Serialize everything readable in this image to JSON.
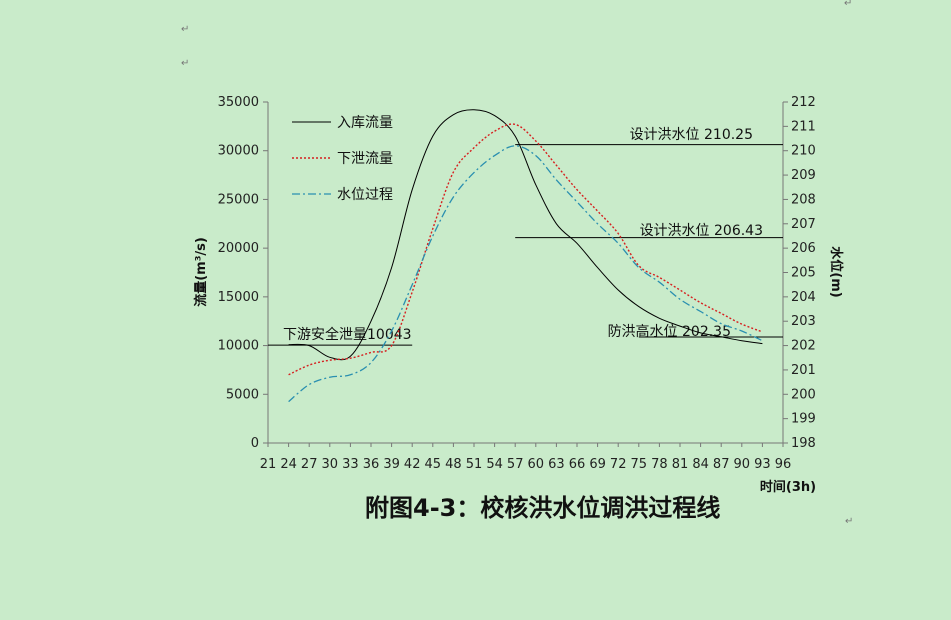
{
  "doc": {
    "para_mark": "↵",
    "caption": "附图4-3：校核洪水位调洪过程线"
  },
  "chart_data": {
    "type": "line",
    "x": [
      21,
      24,
      27,
      30,
      33,
      36,
      39,
      42,
      45,
      48,
      51,
      54,
      57,
      60,
      63,
      66,
      69,
      72,
      75,
      78,
      81,
      84,
      87,
      90,
      93,
      96
    ],
    "xlabel": "时间(3h)",
    "ylabel": "流量(m³/s)",
    "y2label": "水位(m)",
    "ylim": [
      0,
      35000
    ],
    "y2lim": [
      198,
      212
    ],
    "xlim": [
      21,
      96
    ],
    "yticks": [
      0,
      5000,
      10000,
      15000,
      20000,
      25000,
      30000,
      35000
    ],
    "y2ticks": [
      198,
      199,
      200,
      201,
      202,
      203,
      204,
      205,
      206,
      207,
      208,
      209,
      210,
      211,
      212
    ],
    "series": [
      {
        "name": "入库流量",
        "axis": "left",
        "color": "#000000",
        "dash": "solid",
        "x": [
          24,
          27,
          30,
          33,
          36,
          39,
          42,
          45,
          48,
          51,
          54,
          57,
          60,
          63,
          66,
          69,
          72,
          75,
          78,
          81,
          84,
          87,
          90,
          93
        ],
        "values": [
          10100,
          10000,
          8800,
          8900,
          12500,
          18000,
          26000,
          31500,
          33700,
          34200,
          33600,
          31500,
          26500,
          22500,
          20500,
          18000,
          15700,
          14000,
          12800,
          12000,
          11300,
          10900,
          10500,
          10200
        ]
      },
      {
        "name": "下泄流量",
        "axis": "left",
        "color": "#d62020",
        "dash": "dotted",
        "x": [
          24,
          27,
          30,
          33,
          36,
          39,
          42,
          45,
          48,
          51,
          54,
          57,
          60,
          63,
          66,
          69,
          72,
          75,
          78,
          81,
          84,
          87,
          90,
          93
        ],
        "values": [
          7000,
          8000,
          8500,
          8700,
          9300,
          10000,
          15500,
          22000,
          27800,
          30300,
          32000,
          32700,
          31000,
          28500,
          26000,
          23800,
          21500,
          18200,
          17000,
          15700,
          14400,
          13300,
          12200,
          11400
        ]
      },
      {
        "name": "水位过程",
        "axis": "right",
        "color": "#2a8fb0",
        "dash": "dashdot",
        "x": [
          24,
          27,
          30,
          33,
          36,
          39,
          42,
          45,
          48,
          51,
          54,
          57,
          60,
          63,
          66,
          69,
          72,
          75,
          78,
          81,
          84,
          87,
          90,
          93
        ],
        "values": [
          199.7,
          200.4,
          200.7,
          200.8,
          201.3,
          202.6,
          204.5,
          206.5,
          208.1,
          209.1,
          209.8,
          210.2,
          209.8,
          208.8,
          207.9,
          207.0,
          206.2,
          205.2,
          204.6,
          203.9,
          203.4,
          202.9,
          202.6,
          202.2
        ]
      }
    ],
    "reference_lines": [
      {
        "label": "下游安全泄量10043",
        "axis": "left",
        "value": 10043,
        "x_from": 21,
        "x_to": 42
      },
      {
        "label": "设计洪水位 210.25",
        "axis": "right",
        "value": 210.25,
        "x_from": 57,
        "x_to": 96
      },
      {
        "label": "设计洪水位  206.43",
        "axis": "right",
        "value": 206.43,
        "x_from": 57,
        "x_to": 96
      },
      {
        "label": "防洪高水位  202.35",
        "axis": "right",
        "value": 202.35,
        "x_from": 75,
        "x_to": 96
      }
    ],
    "legend": "top-left",
    "grid": false
  }
}
